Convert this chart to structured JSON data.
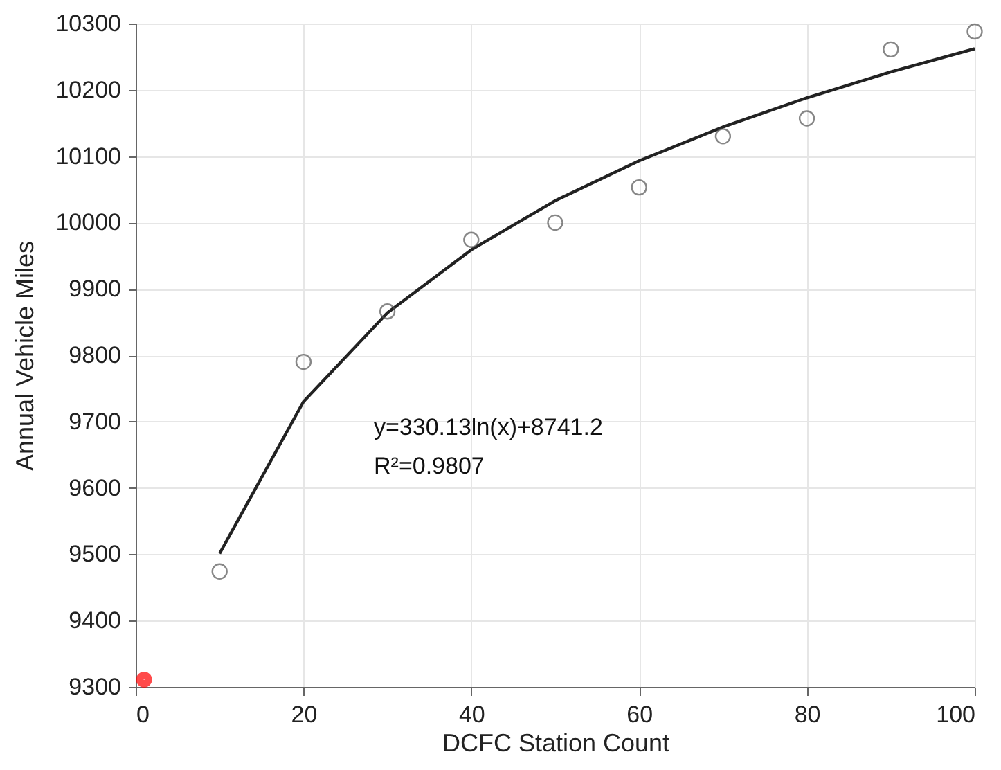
{
  "chart_data": {
    "type": "scatter",
    "xlabel": "DCFC Station Count",
    "ylabel": "Annual Vehicle Miles",
    "xlim": [
      0,
      100
    ],
    "xticks": [
      0,
      20,
      40,
      60,
      80,
      100
    ],
    "ylim": [
      9300,
      10300
    ],
    "yticks": [
      9300,
      9400,
      9500,
      9600,
      9700,
      9800,
      9900,
      10000,
      10100,
      10200,
      10300
    ],
    "grid": true,
    "annotations": [
      "y=330.13ln(x)+8741.2",
      "R²=0.9807"
    ],
    "series": [
      {
        "type": "line",
        "color": "#222222",
        "x": [
          10,
          20,
          30,
          40,
          50,
          60,
          70,
          80,
          90,
          100
        ],
        "values": [
          9501,
          9730,
          9864,
          9959,
          10033,
          10093,
          10144,
          10188,
          10227,
          10262
        ]
      },
      {
        "marker": "circle",
        "color": "#555555",
        "x": [
          10,
          20,
          30,
          40,
          50,
          60,
          70,
          80,
          90,
          100
        ],
        "values": [
          9474,
          9790,
          9866,
          9974,
          10000,
          10053,
          10130,
          10157,
          10261,
          10288
        ]
      },
      {
        "marker": "circle",
        "color": "#ff0000",
        "x": [
          1
        ],
        "values": [
          9311
        ]
      }
    ]
  }
}
